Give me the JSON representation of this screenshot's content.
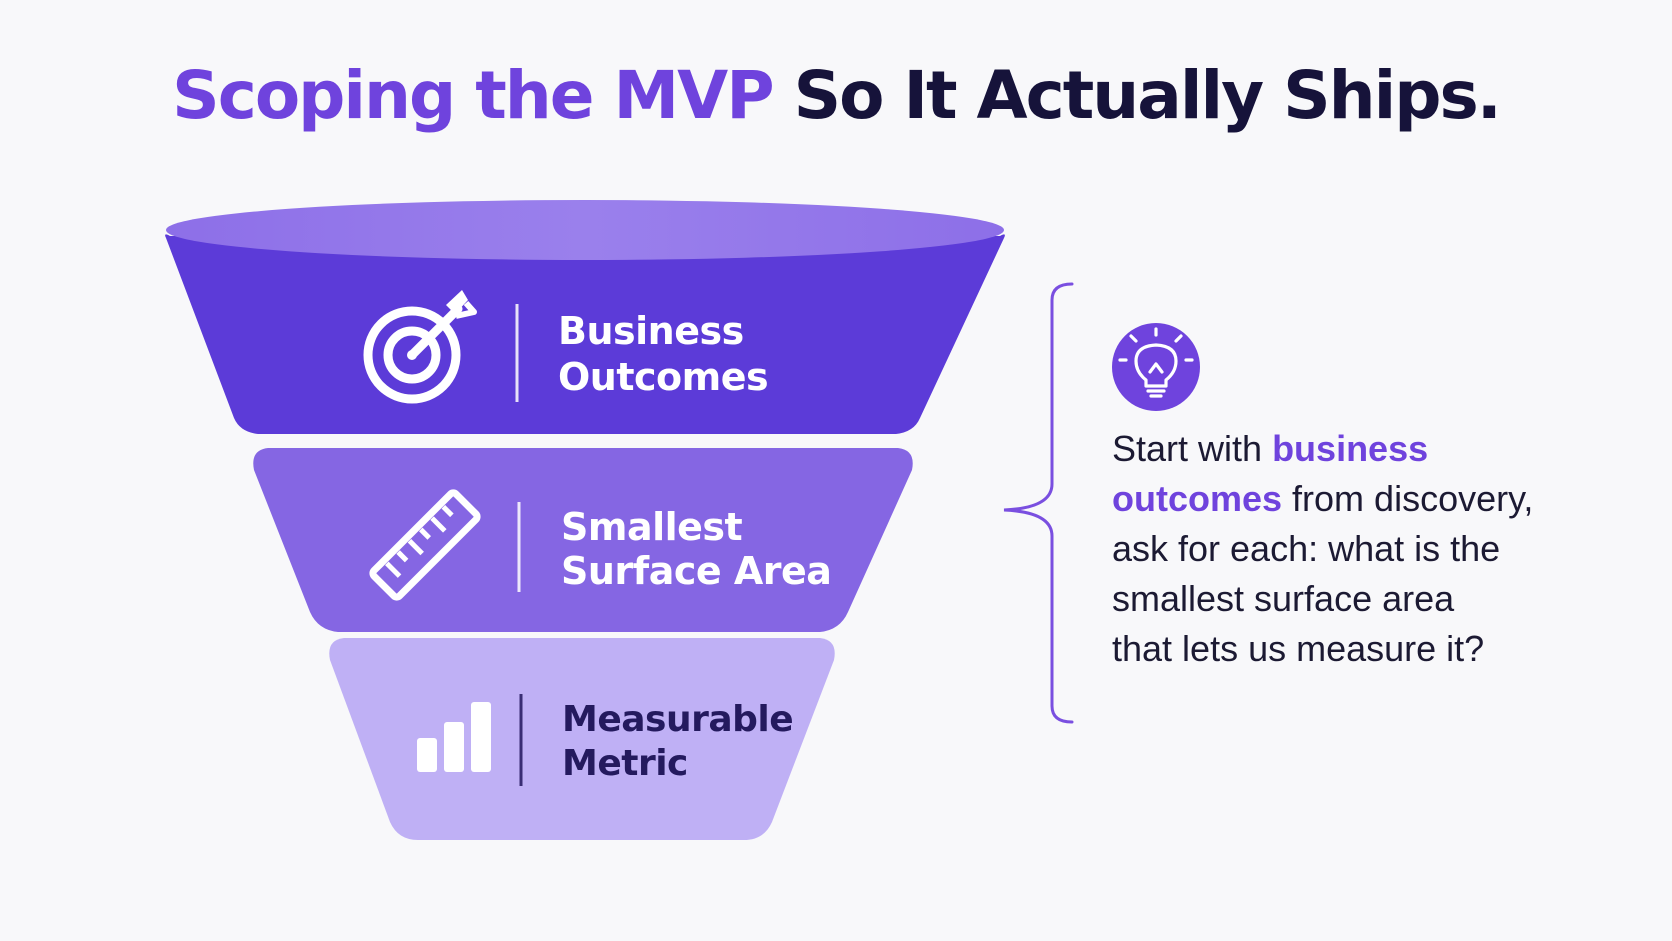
{
  "title": {
    "accent_text": "Scoping the MVP",
    "rest_text": " So It Actually Ships."
  },
  "funnel": {
    "tiers": [
      {
        "line1": "Business",
        "line2": "Outcomes",
        "icon": "target-icon",
        "color": "#5c3bd8"
      },
      {
        "line1": "Smallest",
        "line2": "Surface Area",
        "icon": "ruler-icon",
        "color": "#8566e3"
      },
      {
        "line1": "Measurable",
        "line2": "Metric",
        "icon": "bar-chart-icon",
        "color": "#bfb0f5"
      }
    ]
  },
  "callout": {
    "icon": "lightbulb-icon",
    "line1_pre": "Start with ",
    "line1_hl": "business",
    "line2_hl": "outcomes",
    "line2_post": " from discovery,",
    "line3": "ask for each: what is the",
    "line4": "smallest surface area",
    "line5": "that lets us measure it?"
  },
  "colors": {
    "accent": "#6f43dd",
    "dark_text": "#16133a",
    "background": "#f8f8fa"
  }
}
